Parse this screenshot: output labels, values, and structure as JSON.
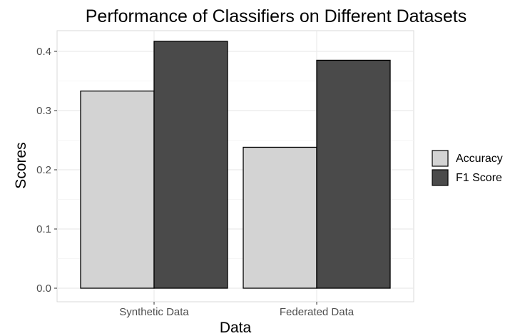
{
  "chart_data": {
    "type": "bar",
    "title": "Performance of Classifiers on Different Datasets",
    "xlabel": "Data",
    "ylabel": "Scores",
    "categories": [
      "Synthetic Data",
      "Federated Data"
    ],
    "series": [
      {
        "name": "Accuracy",
        "values": [
          0.333,
          0.238
        ],
        "color": "#d3d3d3"
      },
      {
        "name": "F1 Score",
        "values": [
          0.417,
          0.385
        ],
        "color": "#4a4a4a"
      }
    ],
    "ylim": [
      0,
      0.42
    ],
    "yticks": [
      "0.0",
      "0.1",
      "0.2",
      "0.3",
      "0.4"
    ],
    "grid": true,
    "legend_position": "right",
    "bar_outline_color": "#000000",
    "grid_color": "#ebebeb"
  }
}
